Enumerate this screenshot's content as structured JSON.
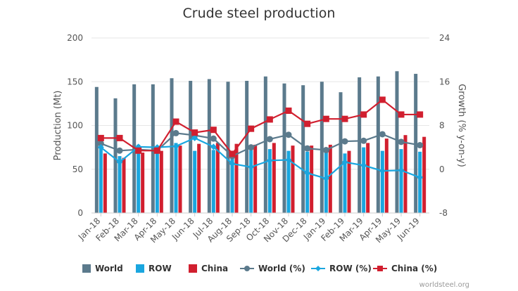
{
  "chart_data": {
    "type": "bar+line",
    "title": "Crude steel production",
    "categories": [
      "Jan-18",
      "Feb-18",
      "Mar-18",
      "Apr-18",
      "May-18",
      "Jun-18",
      "Jul-18",
      "Aug-18",
      "Sep-18",
      "Oct-18",
      "Nov-18",
      "Dec-18",
      "Jan-19",
      "Feb-19",
      "Mar-19",
      "Apr-19",
      "May-19",
      "Jun-19"
    ],
    "ylabel": "Production (Mt)",
    "y2label": "Growth (% y-on-y)",
    "ylim": [
      0,
      200
    ],
    "yticks": [
      0,
      50,
      100,
      150,
      200
    ],
    "y2lim": [
      -8,
      24
    ],
    "y2ticks": [
      -8,
      0,
      8,
      16,
      24
    ],
    "grid": true,
    "series": [
      {
        "name": "World",
        "kind": "bar",
        "axis": "left",
        "color": "#5b7a8c",
        "values": [
          144,
          131,
          147,
          147,
          154,
          151,
          153,
          150,
          151,
          156,
          148,
          146,
          150,
          138,
          155,
          156,
          162,
          159
        ]
      },
      {
        "name": "ROW",
        "kind": "bar",
        "axis": "left",
        "color": "#1aa6df",
        "values": [
          76,
          65,
          78,
          77,
          80,
          71,
          72,
          71,
          72,
          73,
          71,
          70,
          72,
          68,
          75,
          71,
          73,
          70
        ]
      },
      {
        "name": "China",
        "kind": "bar",
        "axis": "left",
        "color": "#d11f2f",
        "values": [
          68,
          63,
          69,
          71,
          77,
          79,
          80,
          79,
          78,
          80,
          77,
          77,
          78,
          71,
          80,
          85,
          89,
          87
        ]
      },
      {
        "name": "World (%)",
        "kind": "line",
        "axis": "right",
        "color": "#5b7a8c",
        "marker": "circle",
        "values": [
          4.7,
          3.4,
          3.6,
          3.4,
          6.6,
          6.2,
          5.6,
          2.4,
          4.0,
          5.5,
          6.3,
          3.8,
          3.5,
          5.1,
          5.2,
          6.4,
          5.0,
          4.4
        ]
      },
      {
        "name": "ROW (%)",
        "kind": "line",
        "axis": "right",
        "color": "#1aa6df",
        "marker": "diamond",
        "values": [
          4.0,
          1.3,
          4.1,
          4.0,
          4.2,
          5.7,
          4.1,
          1.0,
          0.4,
          1.6,
          1.7,
          -0.7,
          -1.7,
          1.3,
          0.7,
          -0.3,
          -0.2,
          -1.5
        ]
      },
      {
        "name": "China (%)",
        "kind": "line",
        "axis": "right",
        "color": "#d11f2f",
        "marker": "square",
        "values": [
          5.7,
          5.7,
          3.4,
          3.4,
          8.7,
          6.7,
          7.2,
          2.8,
          7.4,
          9.1,
          10.7,
          8.3,
          9.2,
          9.2,
          10.0,
          12.7,
          10.0,
          10.0
        ]
      }
    ],
    "legend": {
      "placement": "bottom",
      "items": [
        {
          "label": "World",
          "color": "#5b7a8c",
          "symbol": "bar"
        },
        {
          "label": "ROW",
          "color": "#1aa6df",
          "symbol": "bar"
        },
        {
          "label": "China",
          "color": "#d11f2f",
          "symbol": "bar"
        },
        {
          "label": "World (%)",
          "color": "#5b7a8c",
          "symbol": "line-circle"
        },
        {
          "label": "ROW (%)",
          "color": "#1aa6df",
          "symbol": "line-diamond"
        },
        {
          "label": "China (%)",
          "color": "#d11f2f",
          "symbol": "line-square"
        }
      ]
    },
    "credit": "worldsteel.org"
  }
}
